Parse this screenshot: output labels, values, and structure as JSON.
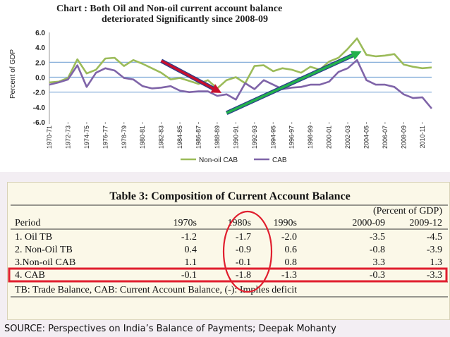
{
  "chart_data": [
    {
      "type": "line",
      "title": "Chart    : Both Oil and Non-oil current account balance deteriorated Significantly since 2008-09",
      "title_line1": "Chart    : Both Oil and Non-oil current account balance",
      "title_line2": "deteriorated Significantly since 2008-09",
      "ylabel": "Percent of GDP",
      "xlabel": "",
      "ylim": [
        -6,
        6
      ],
      "yticks": [
        "6.0",
        "4.0",
        "2.0",
        "0.0",
        "-2.0",
        "-4.0",
        "-6.0"
      ],
      "ytick_values": [
        6,
        4,
        2,
        0,
        -2,
        -4,
        -6
      ],
      "reference_lines": [
        2,
        0,
        -2
      ],
      "categories": [
        "1970-71",
        "1971-72",
        "1972-73",
        "1973-74",
        "1974-75",
        "1975-76",
        "1976-77",
        "1977-78",
        "1978-79",
        "1979-80",
        "1980-81",
        "1981-82",
        "1982-83",
        "1983-84",
        "1984-85",
        "1985-86",
        "1986-87",
        "1987-88",
        "1988-89",
        "1989-90",
        "1990-91",
        "1991-92",
        "1992-93",
        "1993-94",
        "1994-95",
        "1995-96",
        "1996-97",
        "1997-98",
        "1998-99",
        "1999-00",
        "2000-01",
        "2001-02",
        "2002-03",
        "2003-04",
        "2004-05",
        "2005-06",
        "2006-07",
        "2007-08",
        "2008-09",
        "2009-10",
        "2010-11",
        "2011-12"
      ],
      "tick_labels": [
        "1970-71",
        "1972-73",
        "1974-75",
        "1976-77",
        "1978-79",
        "1980-81",
        "1982-83",
        "1984-85",
        "1986-87",
        "1988-89",
        "1990-91",
        "1992-93",
        "1994-95",
        "1996-97",
        "1998-99",
        "2000-01",
        "2002-03",
        "2004-05",
        "2006-07",
        "2008-09",
        "2010-11"
      ],
      "series": [
        {
          "name": "Non-oil CAB",
          "color": "#9bbb59",
          "values": [
            -0.7,
            -0.6,
            -0.1,
            2.4,
            0.5,
            1.0,
            2.5,
            2.6,
            1.5,
            2.3,
            1.8,
            1.2,
            0.6,
            -0.3,
            -0.1,
            -0.5,
            -0.9,
            -0.4,
            -1.5,
            -0.4,
            0.0,
            -0.8,
            1.5,
            1.6,
            0.8,
            1.2,
            1.0,
            0.6,
            1.4,
            1.0,
            2.1,
            2.6,
            3.8,
            5.2,
            3.0,
            2.8,
            2.9,
            3.1,
            1.7,
            1.4,
            1.2,
            1.3
          ]
        },
        {
          "name": "CAB",
          "color": "#7f64a8",
          "values": [
            -1.0,
            -0.7,
            -0.3,
            1.6,
            -1.3,
            0.6,
            1.2,
            0.9,
            -0.1,
            -0.3,
            -1.2,
            -1.5,
            -1.4,
            -1.2,
            -1.8,
            -2.0,
            -1.9,
            -1.9,
            -2.5,
            -2.3,
            -3.0,
            -0.8,
            -1.6,
            -0.4,
            -1.0,
            -1.6,
            -1.4,
            -1.3,
            -1.0,
            -1.0,
            -0.6,
            0.7,
            1.2,
            2.3,
            -0.4,
            -1.0,
            -1.0,
            -1.3,
            -2.3,
            -2.8,
            -2.7,
            -4.2
          ]
        }
      ],
      "legend": {
        "placement": "bottom-center",
        "items": [
          "Non-oil CAB",
          "CAB"
        ]
      },
      "annotations": [
        {
          "kind": "arrow",
          "color": "#c8102e",
          "from": [
            "1982-83",
            2.2
          ],
          "to": [
            "1988-89",
            -1.8
          ]
        },
        {
          "kind": "arrow",
          "color": "#22b14c",
          "from": [
            "1989-90",
            -4.8
          ],
          "to": [
            "2003-04",
            3.2
          ]
        }
      ]
    },
    {
      "type": "table",
      "title": "Table 3: Composition of Current Account Balance",
      "unit_note": "(Percent of GDP)",
      "columns": [
        "Period",
        "1970s",
        "1980s",
        "1990s",
        "2000-09",
        "2009-12"
      ],
      "rows": [
        {
          "label": "1. Oil TB",
          "values": [
            "-1.2",
            "-1.7",
            "-2.0",
            "-3.5",
            "-4.5"
          ]
        },
        {
          "label": "2. Non-Oil TB",
          "values": [
            "0.4",
            "-0.9",
            "0.6",
            "-0.8",
            "-3.9"
          ]
        },
        {
          "label": "3.Non-oil CAB",
          "values": [
            "1.1",
            "-0.1",
            "0.8",
            "3.3",
            "1.3"
          ]
        },
        {
          "label": "4. CAB",
          "values": [
            "-0.1",
            "-1.8",
            "-1.3",
            "-0.3",
            "-3.3"
          ]
        }
      ],
      "footnote": "TB: Trade Balance, CAB: Current Account Balance, (-): Implies deficit",
      "highlights": [
        {
          "kind": "box",
          "target": "row",
          "row": "4. CAB",
          "color": "#e01e2e"
        },
        {
          "kind": "ellipse",
          "target": "column",
          "column": "1980s",
          "color": "#e01e2e"
        }
      ]
    }
  ],
  "source": "SOURCE: Perspectives on India’s Balance of Payments; Deepak Mohanty"
}
